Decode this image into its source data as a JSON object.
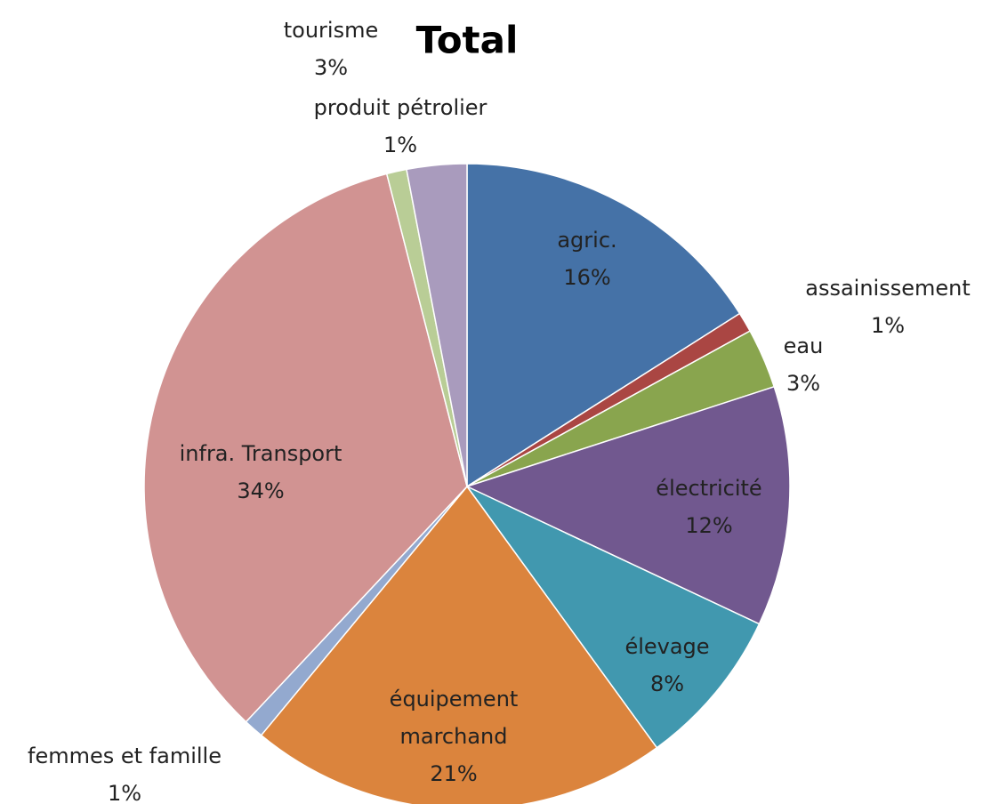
{
  "chart_data": {
    "type": "pie",
    "title": "Total",
    "categories": [
      "agric.",
      "assainissement",
      "eau",
      "électricité",
      "élevage",
      "équipement marchand",
      "femmes et famille",
      "infra. Transport",
      "produit pétrolier",
      "tourisme"
    ],
    "values": [
      16,
      1,
      3,
      12,
      8,
      21,
      1,
      34,
      1,
      3
    ],
    "value_labels": [
      "16%",
      "1%",
      "3%",
      "12%",
      "8%",
      "21%",
      "1%",
      "34%",
      "1%",
      "3%"
    ],
    "colors": [
      "#4572a7",
      "#aa4643",
      "#89a54e",
      "#71588f",
      "#4198af",
      "#db843d",
      "#93a9cf",
      "#d19392",
      "#b9cd96",
      "#a99bbd"
    ]
  }
}
